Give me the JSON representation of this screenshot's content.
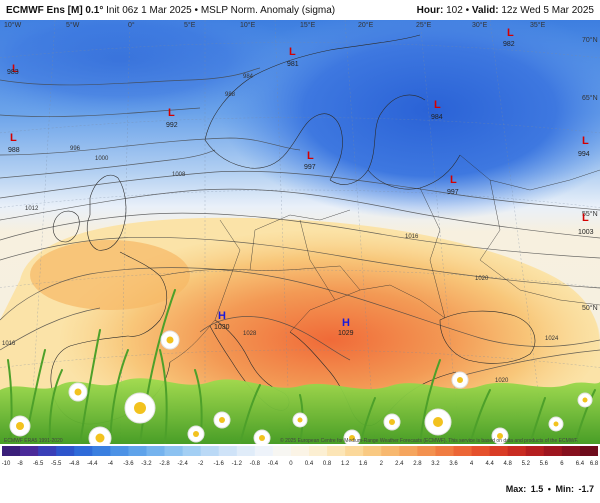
{
  "header": {
    "model": "ECMWF Ens [M] 0.1°",
    "init": "Init 06z 1 Mar 2025",
    "separator": "•",
    "parameter": "MSLP Norm. Anomaly (sigma)",
    "hour_label": "Hour:",
    "hour_value": "102",
    "valid_label": "Valid:",
    "valid_value": "12z Wed 5 Mar 2025"
  },
  "map": {
    "lon_labels": [
      "10°W",
      "5°W",
      "0°",
      "5°E",
      "10°E",
      "15°E",
      "20°E",
      "25°E",
      "30°E",
      "35°E"
    ],
    "lat_labels": [
      "70°N",
      "65°N",
      "55°N",
      "50°N"
    ],
    "isobar_labels": [
      "984",
      "988",
      "996",
      "1000",
      "1008",
      "1012",
      "1016",
      "1020",
      "1024",
      "1028",
      "1016",
      "1020"
    ],
    "centers": [
      {
        "symbol": "L",
        "value": "983"
      },
      {
        "symbol": "L",
        "value": "981"
      },
      {
        "symbol": "L",
        "value": "982"
      },
      {
        "symbol": "L",
        "value": "992"
      },
      {
        "symbol": "L",
        "value": "984"
      },
      {
        "symbol": "L",
        "value": "988"
      },
      {
        "symbol": "L",
        "value": "997"
      },
      {
        "symbol": "L",
        "value": "997"
      },
      {
        "symbol": "L",
        "value": "994"
      },
      {
        "symbol": "L",
        "value": "1003"
      },
      {
        "symbol": "H",
        "value": "1030"
      },
      {
        "symbol": "H",
        "value": "1029"
      }
    ]
  },
  "colorbar": {
    "labels": [
      "-10",
      "-8",
      "-6.5",
      "-5.5",
      "-4.8",
      "-4.4",
      "-4",
      "-3.6",
      "-3.2",
      "-2.8",
      "-2.4",
      "-2",
      "-1.6",
      "-1.2",
      "-0.8",
      "-0.4",
      "0",
      "0.4",
      "0.8",
      "1.2",
      "1.6",
      "2",
      "2.4",
      "2.8",
      "3.2",
      "3.6",
      "4",
      "4.4",
      "4.8",
      "5.2",
      "5.6",
      "6",
      "6.4",
      "6.8"
    ],
    "colors": [
      "#3b1f7a",
      "#4b2a9a",
      "#3a3fb8",
      "#2e55cc",
      "#2f6bd9",
      "#3a7fe0",
      "#4c92e6",
      "#5fa3ea",
      "#75b3ee",
      "#8cc2f1",
      "#a3cff4",
      "#bad9f6",
      "#cfe3f8",
      "#e0ecf9",
      "#eef3fa",
      "#f7f6f2",
      "#fbf4e6",
      "#fcefd2",
      "#fce5b6",
      "#fbd89a",
      "#f9c982",
      "#f7b86f",
      "#f5a55e",
      "#f3914f",
      "#f07c42",
      "#ec6636",
      "#e5502c",
      "#d93c26",
      "#c92c22",
      "#b51f20",
      "#9e161f",
      "#86101e",
      "#6e0c1c"
    ]
  },
  "footer": {
    "copyright": "© 2025 European Centre for Medium-Range Weather Forecasts (ECMWF). This service is based on data and products of the ECMWF.",
    "source_credit": "ECMWF ERA5 1991-2020",
    "max_label": "Max:",
    "max_value": "1.5",
    "stats_separator": "•",
    "min_label": "Min:",
    "min_value": "-1.7"
  }
}
